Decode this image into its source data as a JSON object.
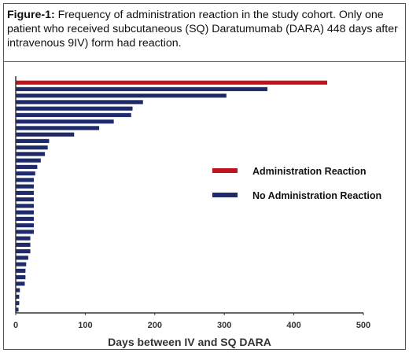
{
  "caption": {
    "label": "Figure-1:",
    "text": " Frequency of administration reaction in the study cohort. Only one patient who received subcutaneous (SQ) Daratumumab (DARA) 448 days after intravenous 9IV) form had reaction."
  },
  "chart_data": {
    "type": "bar",
    "orientation": "horizontal",
    "xlabel": "Days between IV and SQ DARA",
    "ylabel": "",
    "xlim": [
      0,
      500
    ],
    "xticks": [
      0,
      100,
      200,
      300,
      400,
      500
    ],
    "grid": false,
    "legend_position": "right-middle",
    "series": [
      {
        "name": "Administration Reaction",
        "color": "#c0141c"
      },
      {
        "name": "No Administration Reaction",
        "color": "#1f2a6b"
      }
    ],
    "bars": [
      {
        "value": 448,
        "series": 0
      },
      {
        "value": 362,
        "series": 1
      },
      {
        "value": 303,
        "series": 1
      },
      {
        "value": 183,
        "series": 1
      },
      {
        "value": 168,
        "series": 1
      },
      {
        "value": 166,
        "series": 1
      },
      {
        "value": 141,
        "series": 1
      },
      {
        "value": 120,
        "series": 1
      },
      {
        "value": 84,
        "series": 1
      },
      {
        "value": 48,
        "series": 1
      },
      {
        "value": 46,
        "series": 1
      },
      {
        "value": 42,
        "series": 1
      },
      {
        "value": 36,
        "series": 1
      },
      {
        "value": 31,
        "series": 1
      },
      {
        "value": 28,
        "series": 1
      },
      {
        "value": 26,
        "series": 1
      },
      {
        "value": 26,
        "series": 1
      },
      {
        "value": 26,
        "series": 1
      },
      {
        "value": 26,
        "series": 1
      },
      {
        "value": 26,
        "series": 1
      },
      {
        "value": 26,
        "series": 1
      },
      {
        "value": 26,
        "series": 1
      },
      {
        "value": 26,
        "series": 1
      },
      {
        "value": 26,
        "series": 1
      },
      {
        "value": 21,
        "series": 1
      },
      {
        "value": 21,
        "series": 1
      },
      {
        "value": 21,
        "series": 1
      },
      {
        "value": 18,
        "series": 1
      },
      {
        "value": 15,
        "series": 1
      },
      {
        "value": 14,
        "series": 1
      },
      {
        "value": 14,
        "series": 1
      },
      {
        "value": 13,
        "series": 1
      },
      {
        "value": 6,
        "series": 1
      },
      {
        "value": 5,
        "series": 1
      },
      {
        "value": 5,
        "series": 1
      },
      {
        "value": 4,
        "series": 1
      }
    ]
  }
}
